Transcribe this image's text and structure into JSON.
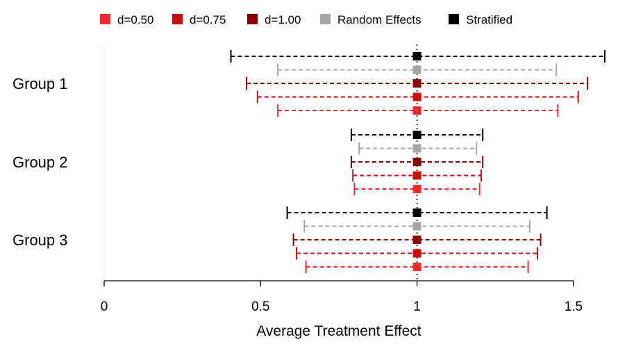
{
  "chart_data": {
    "type": "forest",
    "xlabel": "Average Treatment Effect",
    "xlim": [
      0,
      1.6
    ],
    "x_ticks": [
      0,
      0.5,
      1,
      1.5
    ],
    "x_tick_labels": [
      "0",
      "0.5",
      "1",
      "1.5"
    ],
    "reference_line": 1,
    "legend_position": "top",
    "series": [
      {
        "name": "d=0.50",
        "color": "#ef2b2d"
      },
      {
        "name": "d=0.75",
        "color": "#c90d0d"
      },
      {
        "name": "d=1.00",
        "color": "#8b0000"
      },
      {
        "name": "Random Effects",
        "color": "#a6a6a6"
      },
      {
        "name": "Stratified",
        "color": "#000000"
      }
    ],
    "groups": [
      {
        "label": "Group 1",
        "intervals": [
          {
            "series": "Stratified",
            "estimate": 1.0,
            "lower": 0.405,
            "upper": 1.6
          },
          {
            "series": "Random Effects",
            "estimate": 1.0,
            "lower": 0.555,
            "upper": 1.445
          },
          {
            "series": "d=1.00",
            "estimate": 1.0,
            "lower": 0.455,
            "upper": 1.545
          },
          {
            "series": "d=0.75",
            "estimate": 1.0,
            "lower": 0.49,
            "upper": 1.515
          },
          {
            "series": "d=0.50",
            "estimate": 1.0,
            "lower": 0.555,
            "upper": 1.45
          }
        ]
      },
      {
        "label": "Group 2",
        "intervals": [
          {
            "series": "Stratified",
            "estimate": 1.0,
            "lower": 0.79,
            "upper": 1.21
          },
          {
            "series": "Random Effects",
            "estimate": 1.0,
            "lower": 0.815,
            "upper": 1.19
          },
          {
            "series": "d=1.00",
            "estimate": 1.0,
            "lower": 0.79,
            "upper": 1.21
          },
          {
            "series": "d=0.75",
            "estimate": 1.0,
            "lower": 0.795,
            "upper": 1.205
          },
          {
            "series": "d=0.50",
            "estimate": 1.0,
            "lower": 0.8,
            "upper": 1.2
          }
        ]
      },
      {
        "label": "Group 3",
        "intervals": [
          {
            "series": "Stratified",
            "estimate": 1.0,
            "lower": 0.585,
            "upper": 1.415
          },
          {
            "series": "Random Effects",
            "estimate": 1.0,
            "lower": 0.64,
            "upper": 1.36
          },
          {
            "series": "d=1.00",
            "estimate": 1.0,
            "lower": 0.605,
            "upper": 1.395
          },
          {
            "series": "d=0.75",
            "estimate": 1.0,
            "lower": 0.615,
            "upper": 1.385
          },
          {
            "series": "d=0.50",
            "estimate": 1.0,
            "lower": 0.645,
            "upper": 1.355
          }
        ]
      }
    ]
  }
}
